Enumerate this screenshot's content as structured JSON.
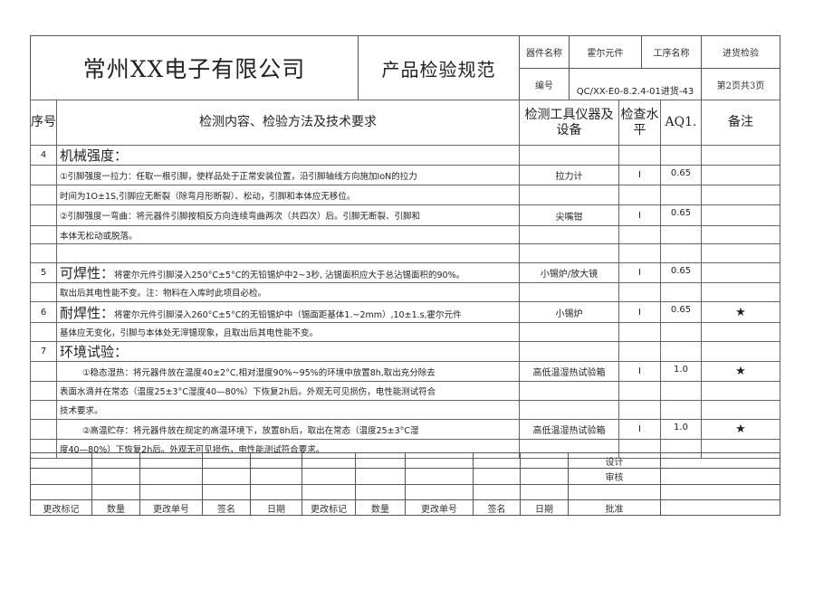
{
  "header": {
    "company": "常州XX电子有限公司",
    "doc_title": "产品检验规范",
    "part_name_label": "器件名称",
    "part_name": "霍尔元件",
    "process_label": "工序名称",
    "process": "进货检验",
    "code_label": "编号",
    "code": "QC/XX-E0-8.2.4-01进货-43",
    "page": "第2页共3页"
  },
  "columns": {
    "seq": "序号",
    "content": "检测内容、检验方法及技术要求",
    "tools": "检测工具仪器及设备",
    "level": "检查水平",
    "aql": "AQ1.",
    "remarks": "备注"
  },
  "rows": [
    {
      "seq": "4",
      "title": "机械强度：",
      "text": "",
      "tool": "",
      "level": "",
      "aql": "",
      "remark": ""
    },
    {
      "seq": "",
      "title": "",
      "text": "①引脚强度一拉力：任取一根引脚，使样品处于正常安装位置，沿引脚轴线方向施加IoN的拉力",
      "tool": "拉力计",
      "level": "I",
      "aql": "0.65",
      "remark": ""
    },
    {
      "seq": "",
      "title": "",
      "text": "时间为1O±1S,引脚应无断裂（除弯月形断裂）、松动，引脚和本体应无移位。",
      "tool": "",
      "level": "",
      "aql": "",
      "remark": ""
    },
    {
      "seq": "",
      "title": "",
      "text": "②引脚强度一弯曲：将元器件引脚按相反方向连续弯曲两次（共四次）后。引脚无断裂、引脚和",
      "tool": "尖嘴钳",
      "level": "I",
      "aql": "0.65",
      "remark": ""
    },
    {
      "seq": "",
      "title": "",
      "text": "本体无松动或脱落。",
      "tool": "",
      "level": "",
      "aql": "",
      "remark": ""
    },
    {
      "seq": "",
      "title": "",
      "text": "",
      "tool": "",
      "level": "",
      "aql": "",
      "remark": ""
    },
    {
      "seq": "5",
      "title": "可焊性：",
      "text": "将霍尔元件引脚浸入250°C±5°C的无铅锡炉中2~3秒, 沾锡面积应大于总沾锡面积的90%。",
      "tool": "小锡炉/放大镜",
      "level": "I",
      "aql": "0.65",
      "remark": ""
    },
    {
      "seq": "",
      "title": "",
      "text": "取出后其电性能不变。注：物料在入库时此项目必检。",
      "tool": "",
      "level": "",
      "aql": "",
      "remark": ""
    },
    {
      "seq": "6",
      "title": "耐焊性：",
      "text": "将霍尔元件引脚浸入260°C±5°C的无铅锡炉中（锡面距基体1.~2mm）,10±1.s,霍尔元件",
      "tool": "小锡炉",
      "level": "I",
      "aql": "0.65",
      "remark": "★"
    },
    {
      "seq": "",
      "title": "",
      "text": "基体应无变化，引脚与本体处无滓锡现象，且取出后其电性能不变。",
      "tool": "",
      "level": "",
      "aql": "",
      "remark": ""
    },
    {
      "seq": "7",
      "title": "环境试验：",
      "text": "",
      "tool": "",
      "level": "",
      "aql": "",
      "remark": ""
    },
    {
      "seq": "",
      "title": "",
      "text": "①稳态湿热：将元器件放在温度40±2°C,相对湿度90%~95%的环境中放置8h,取出充分除去",
      "indent": true,
      "tool": "高低温湿热试验箱",
      "level": "I",
      "aql": "1.0",
      "remark": "★"
    },
    {
      "seq": "",
      "title": "",
      "text": "表面水滴并在常态（温度25±3°C湿度40—80%）下恢复2h后。外观无可见损伤，电性能测试符合",
      "tool": "",
      "level": "",
      "aql": "",
      "remark": ""
    },
    {
      "seq": "",
      "title": "",
      "text": "技术要求。",
      "tool": "",
      "level": "",
      "aql": "",
      "remark": ""
    },
    {
      "seq": "",
      "title": "",
      "text": "②高温贮存：将元器件放在规定的高温环境下，放置8h后，取出在常态（温度25±3°C湿",
      "indent": true,
      "tool": "高低温湿热试验箱",
      "level": "I",
      "aql": "1.0",
      "remark": "★"
    },
    {
      "seq": "",
      "title": "",
      "text": "度40—80%）下恢复2h后。外观无可见损伤，电性能测试符合要求。",
      "tool": "",
      "level": "",
      "aql": "",
      "remark": ""
    }
  ],
  "footer": {
    "design": "设计",
    "review": "审核",
    "approve": "批准",
    "labels": [
      "更改标记",
      "数量",
      "更改单号",
      "签名",
      "日期",
      "更改标记",
      "数量",
      "更改单号",
      "签名",
      "日期"
    ]
  }
}
